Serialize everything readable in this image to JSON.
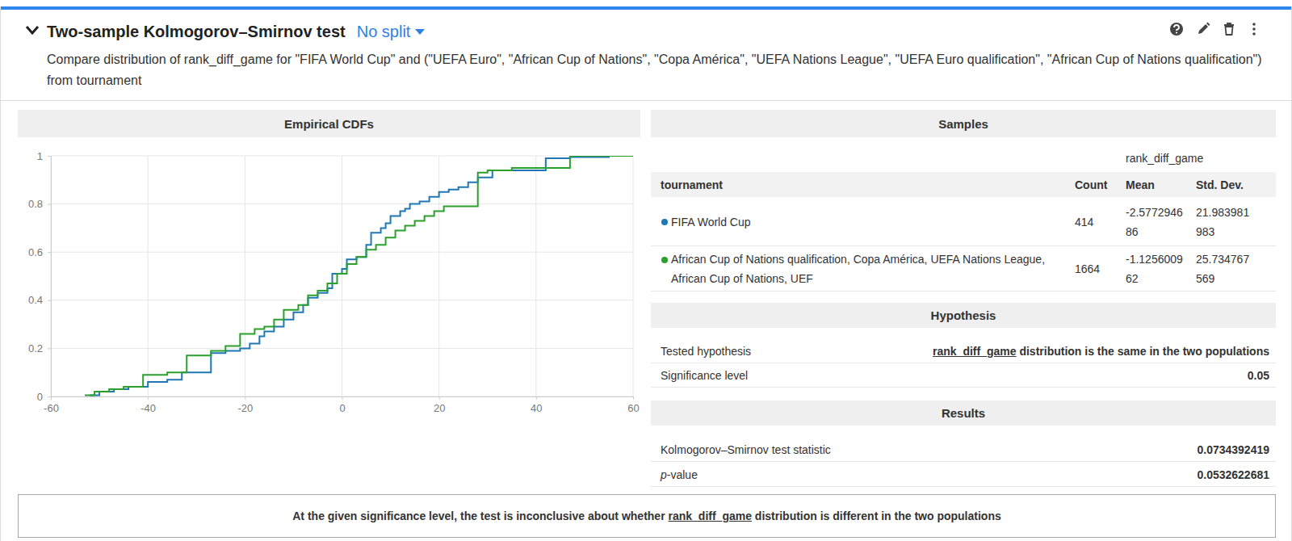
{
  "header": {
    "title": "Two-sample Kolmogorov–Smirnov test",
    "split": "No split",
    "description": "Compare distribution of rank_diff_game for \"FIFA World Cup\" and (\"UEFA Euro\", \"African Cup of Nations\", \"Copa América\", \"UEFA Nations League\", \"UEFA Euro qualification\", \"African Cup of Nations qualification\") from tournament"
  },
  "chart_data": {
    "type": "line",
    "title": "Empirical CDFs",
    "series": [
      {
        "color": "#1f77b4",
        "line_style": "step",
        "x": [
          -52,
          -50,
          -47,
          -44,
          -40,
          -36,
          -33,
          -27,
          -24,
          -21,
          -19,
          -17,
          -16,
          -14,
          -12,
          -10,
          -8,
          -7,
          -5,
          -3,
          -2,
          0,
          1,
          3,
          5,
          6,
          8,
          9,
          10,
          12,
          13,
          14,
          16,
          18,
          20,
          22,
          24,
          26,
          28,
          31,
          42,
          47,
          55,
          60
        ],
        "values": [
          0.005,
          0.02,
          0.03,
          0.04,
          0.06,
          0.07,
          0.1,
          0.18,
          0.19,
          0.2,
          0.22,
          0.25,
          0.27,
          0.29,
          0.32,
          0.35,
          0.38,
          0.41,
          0.43,
          0.45,
          0.51,
          0.53,
          0.57,
          0.58,
          0.63,
          0.68,
          0.7,
          0.72,
          0.75,
          0.77,
          0.78,
          0.8,
          0.81,
          0.83,
          0.85,
          0.86,
          0.87,
          0.89,
          0.91,
          0.94,
          0.99,
          0.995,
          1,
          1
        ]
      },
      {
        "color": "#2ca02c",
        "line_style": "step",
        "x": [
          -53,
          -51,
          -48,
          -45,
          -41,
          -36,
          -32,
          -27,
          -24,
          -21,
          -18,
          -16,
          -14,
          -12,
          -9,
          -7,
          -5,
          -3,
          -1,
          1,
          3,
          5,
          7,
          9,
          11,
          13,
          15,
          17,
          19,
          21,
          28,
          30,
          35,
          47,
          60
        ],
        "values": [
          0.005,
          0.02,
          0.03,
          0.04,
          0.09,
          0.1,
          0.17,
          0.19,
          0.21,
          0.26,
          0.28,
          0.29,
          0.32,
          0.36,
          0.38,
          0.42,
          0.44,
          0.47,
          0.51,
          0.55,
          0.58,
          0.61,
          0.63,
          0.66,
          0.69,
          0.71,
          0.73,
          0.75,
          0.77,
          0.79,
          0.93,
          0.94,
          0.95,
          1,
          1
        ]
      }
    ],
    "xlim": [
      -60,
      60
    ],
    "xticks": [
      -60,
      -40,
      -20,
      0,
      20,
      40,
      60
    ],
    "ylim": [
      0,
      1
    ],
    "yticks": [
      0,
      0.2,
      0.4,
      0.6,
      0.8,
      1
    ],
    "grid": true
  },
  "samples": {
    "title": "Samples",
    "variable": "rank_diff_game",
    "columns": [
      "tournament",
      "Count",
      "Mean",
      "Std. Dev."
    ],
    "rows": [
      [
        "FIFA World Cup",
        414,
        -2.577294686,
        21.983981983
      ],
      [
        "African Cup of Nations qualification, Copa América, UEFA Nations League, African Cup of Nations, UEF",
        1664,
        -1.125600962,
        25.734767569
      ]
    ]
  },
  "hypothesis": {
    "title": "Hypothesis",
    "tested_label": "Tested hypothesis",
    "tested_variable": "rank_diff_game",
    "tested_text": " distribution is the same in the two populations",
    "significance_label": "Significance level",
    "significance": 0.05
  },
  "results": {
    "title": "Results",
    "statistic_label": "Kolmogorov–Smirnov test statistic",
    "statistic": 0.0734392419,
    "p_label_italic": "p",
    "p_label": "-value",
    "p_value": 0.0532622681
  },
  "conclusion": {
    "before": "At the given significance level, the test is inconclusive about whether ",
    "variable": "rank_diff_game",
    "after": " distribution is different in the two populations"
  }
}
